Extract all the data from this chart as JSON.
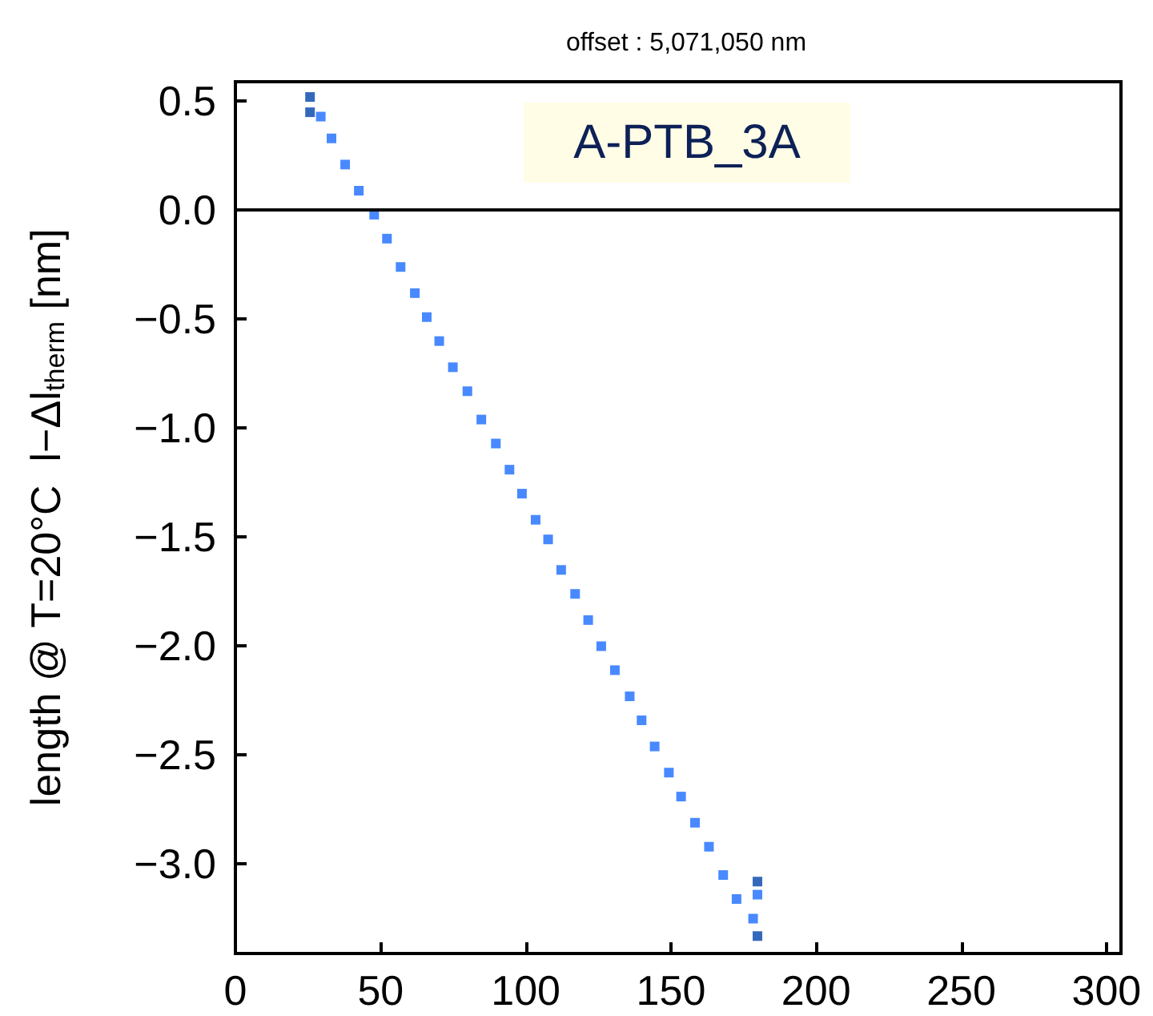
{
  "chart_data": {
    "type": "scatter",
    "title": "offset : 5,071,050 nm",
    "ylabel": "length @ T=20°C  l−Δl$_{therm}$ [nm]",
    "annotations": [
      "A-PTB_3A"
    ],
    "xlim": [
      0,
      305
    ],
    "ylim": [
      -3.41,
      0.59
    ],
    "xticks": [
      0,
      50,
      100,
      150,
      200,
      250,
      300
    ],
    "yticks": [
      {
        "value": 0.5,
        "label": "0.5"
      },
      {
        "value": 0,
        "label": "0.0"
      },
      {
        "value": -0.5,
        "label": "−0.5"
      },
      {
        "value": -1,
        "label": "−1.0"
      },
      {
        "value": -1.5,
        "label": "−1.5"
      },
      {
        "value": -2,
        "label": "−2.0"
      },
      {
        "value": -2.5,
        "label": "−2.5"
      },
      {
        "value": -3,
        "label": "−3.0"
      }
    ],
    "grid": false,
    "marker": "square",
    "ref_lines": [
      {
        "axis": "y",
        "value": 0,
        "color": "#000000"
      }
    ],
    "series": [
      {
        "color": "#1a6cff",
        "x": [
          29.4,
          33.1,
          37.8,
          42.5,
          47.8,
          52.2,
          56.9,
          61.8,
          65.9,
          70.2,
          74.9,
          79.9,
          84.7,
          89.7,
          94.4,
          98.7,
          103.4,
          107.7,
          112.2,
          117,
          121.5,
          126,
          130.7,
          135.8,
          139.9,
          144.4,
          149.3,
          153.5,
          158.3,
          163.1,
          168,
          172.6,
          179.8,
          178.3
        ],
        "values": [
          0.43,
          0.33,
          0.21,
          0.09,
          -0.02,
          -0.13,
          -0.26,
          -0.38,
          -0.49,
          -0.6,
          -0.72,
          -0.83,
          -0.96,
          -1.07,
          -1.19,
          -1.3,
          -1.42,
          -1.51,
          -1.65,
          -1.76,
          -1.88,
          -2,
          -2.11,
          -2.23,
          -2.34,
          -2.46,
          -2.58,
          -2.69,
          -2.81,
          -2.92,
          -3.05,
          -3.16,
          -3.14,
          -3.25
        ]
      },
      {
        "color": "#0044aa",
        "x": [
          25.7,
          25.7,
          179.8,
          179.8
        ],
        "values": [
          0.52,
          0.45,
          -3.08,
          -3.33
        ]
      }
    ]
  }
}
